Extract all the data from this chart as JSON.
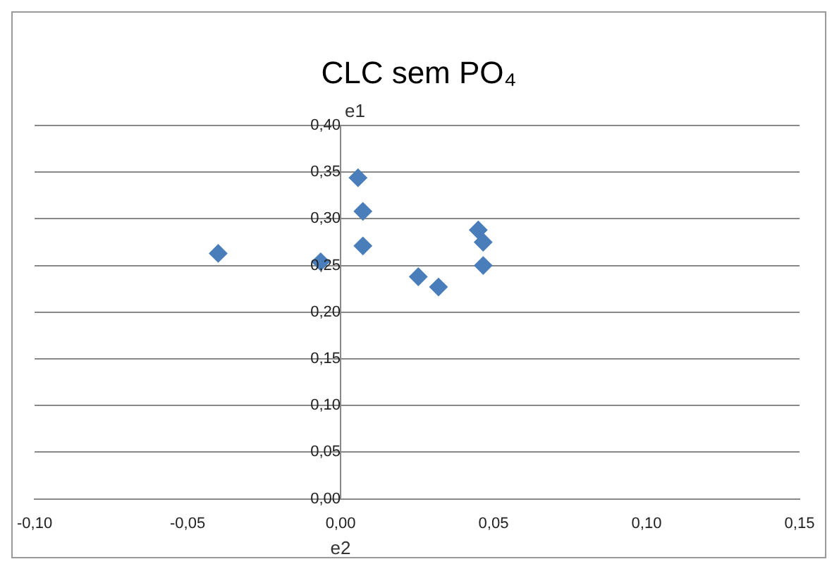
{
  "chart_data": {
    "type": "scatter",
    "title": "CLC sem PO₄",
    "xlabel": "e2",
    "ylabel": "e1",
    "x": [
      -0.04,
      -0.0065,
      0.0057,
      0.0073,
      0.0073,
      0.0254,
      0.032,
      0.045,
      0.0466,
      0.0466
    ],
    "series": [
      {
        "color": "#4a7ebb",
        "values": [
          0.263,
          0.254,
          0.344,
          0.308,
          0.271,
          0.238,
          0.227,
          0.288,
          0.275,
          0.25
        ]
      }
    ],
    "xlim": [
      -0.1,
      0.15
    ],
    "xticks": [
      {
        "value": -0.1,
        "label": "-0,10"
      },
      {
        "value": -0.05,
        "label": "-0,05"
      },
      {
        "value": 0,
        "label": "0,00"
      },
      {
        "value": 0.05,
        "label": "0,05"
      },
      {
        "value": 0.1,
        "label": "0,10"
      },
      {
        "value": 0.15,
        "label": "0,15"
      }
    ],
    "ylim": [
      0,
      0.4
    ],
    "yticks": [
      {
        "value": 0,
        "label": "0,00"
      },
      {
        "value": 0.05,
        "label": "0,05"
      },
      {
        "value": 0.1,
        "label": "0,10"
      },
      {
        "value": 0.15,
        "label": "0,15"
      },
      {
        "value": 0.2,
        "label": "0,20"
      },
      {
        "value": 0.25,
        "label": "0,25"
      },
      {
        "value": 0.3,
        "label": "0,30"
      },
      {
        "value": 0.35,
        "label": "0,35"
      },
      {
        "value": 0.4,
        "label": "0,40"
      }
    ],
    "grid": "y",
    "legend": false,
    "marker": "diamond"
  }
}
